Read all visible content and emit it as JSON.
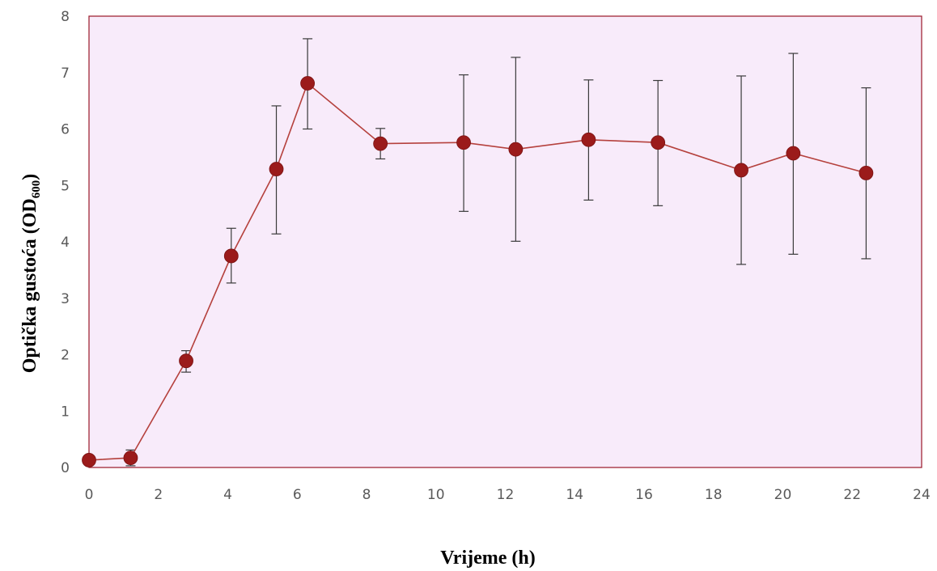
{
  "chart_data": {
    "type": "line",
    "title": "",
    "xlabel": "Vrijeme (h)",
    "ylabel": {
      "main": "Optička gustoća (OD",
      "sub": "600",
      "close": ")"
    },
    "xlim": [
      0,
      24
    ],
    "ylim": [
      0,
      8
    ],
    "x_ticks": [
      "0",
      "2",
      "4",
      "6",
      "8",
      "10",
      "12",
      "14",
      "16",
      "18",
      "20",
      "22",
      "24"
    ],
    "y_ticks": [
      "0",
      "1",
      "2",
      "3",
      "4",
      "5",
      "6",
      "7",
      "8"
    ],
    "grid": false,
    "legend": "none",
    "plot_background": "#f8ebfa",
    "plot_border_color": "#a02737",
    "series": [
      {
        "color": "#9e1a1a",
        "marker_color": "#9b1b1b",
        "line_color": "#b5413d",
        "error_bar_color": "#3a3a3a",
        "x": [
          0,
          1.2,
          2.8,
          4.1,
          5.4,
          6.3,
          8.4,
          10.8,
          12.3,
          14.4,
          16.4,
          18.8,
          20.3,
          22.4
        ],
        "y": [
          0.13,
          0.17,
          1.89,
          3.75,
          5.29,
          6.81,
          5.74,
          5.76,
          5.64,
          5.81,
          5.76,
          5.27,
          5.57,
          5.22
        ],
        "y_error_upper": [
          0.13,
          0.31,
          2.07,
          4.24,
          6.41,
          7.6,
          6.01,
          6.96,
          7.27,
          6.87,
          6.86,
          6.94,
          7.34,
          6.73
        ],
        "y_error_lower": [
          0.13,
          0.03,
          1.69,
          3.27,
          4.14,
          6.0,
          5.47,
          4.54,
          4.01,
          4.74,
          4.64,
          3.6,
          3.78,
          3.7
        ]
      }
    ]
  }
}
